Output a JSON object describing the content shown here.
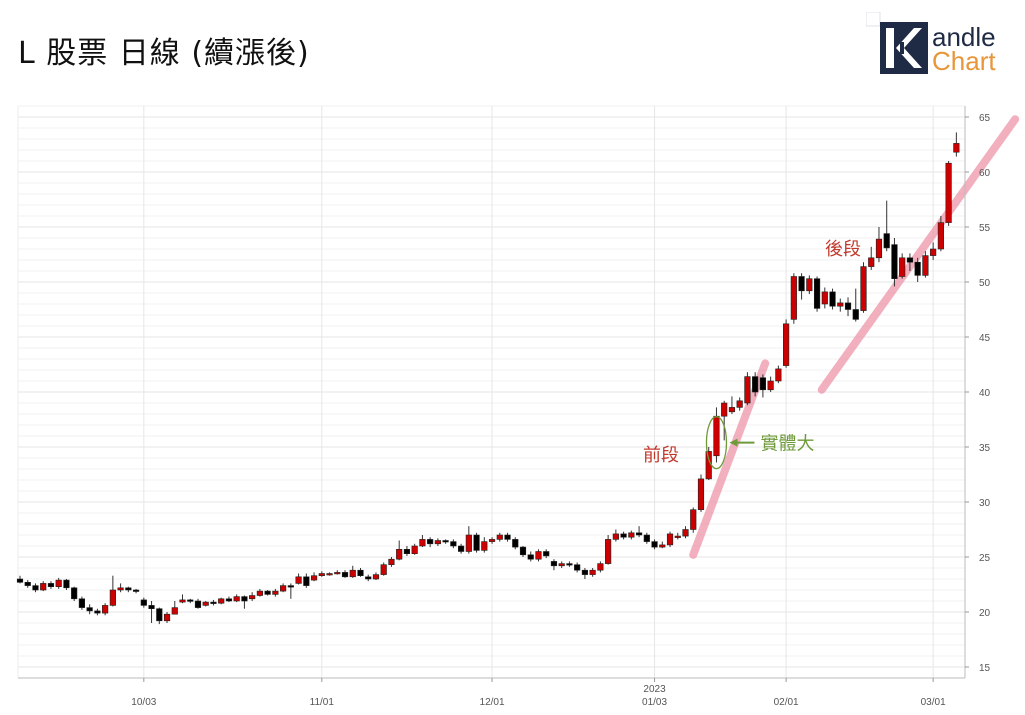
{
  "title": "L 股票 日線 (續漲後)",
  "logo": {
    "icon": "k-logo-icon",
    "line1": "andle",
    "line2": "Chart",
    "color_dark": "#1f2a44",
    "color_accent": "#e8963a"
  },
  "chart_data": {
    "type": "candlestick",
    "title": "L 股票 日線 (續漲後)",
    "xlabel": "",
    "ylabel": "",
    "ylim": [
      14,
      66
    ],
    "yticks": [
      "15",
      "20",
      "25",
      "30",
      "35",
      "40",
      "45",
      "50",
      "55",
      "60",
      "65"
    ],
    "xticks": [
      {
        "index": 16,
        "label": "10/03",
        "year": ""
      },
      {
        "index": 39,
        "label": "11/01",
        "year": ""
      },
      {
        "index": 61,
        "label": "12/01",
        "year": ""
      },
      {
        "index": 82,
        "label": "01/03",
        "year": "2023"
      },
      {
        "index": 99,
        "label": "02/01",
        "year": ""
      },
      {
        "index": 118,
        "label": "03/01",
        "year": ""
      }
    ],
    "up_color": "#cc0000",
    "down_color": "#000000",
    "candles": [
      [
        23.0,
        22.7,
        23.3,
        22.6
      ],
      [
        22.7,
        22.4,
        22.9,
        22.2
      ],
      [
        22.4,
        22.0,
        22.6,
        21.8
      ],
      [
        22.0,
        22.6,
        22.8,
        21.9
      ],
      [
        22.6,
        22.3,
        22.8,
        22.1
      ],
      [
        22.3,
        22.9,
        23.1,
        22.1
      ],
      [
        22.9,
        22.2,
        23.0,
        22.0
      ],
      [
        22.2,
        21.2,
        22.3,
        21.0
      ],
      [
        21.2,
        20.4,
        21.4,
        20.2
      ],
      [
        20.4,
        20.1,
        20.7,
        19.8
      ],
      [
        20.1,
        19.9,
        20.3,
        19.7
      ],
      [
        19.9,
        20.6,
        20.8,
        19.7
      ],
      [
        20.6,
        22.0,
        23.3,
        20.5
      ],
      [
        22.0,
        22.2,
        22.6,
        21.8
      ],
      [
        22.2,
        22.0,
        22.3,
        21.8
      ],
      [
        22.0,
        21.9,
        22.1,
        21.7
      ],
      [
        21.1,
        20.6,
        21.3,
        20.4
      ],
      [
        20.6,
        20.3,
        21.0,
        19.0
      ],
      [
        20.3,
        19.2,
        20.4,
        18.9
      ],
      [
        19.2,
        19.8,
        20.0,
        19.0
      ],
      [
        19.8,
        20.4,
        21.0,
        19.8
      ],
      [
        20.9,
        21.1,
        21.6,
        20.8
      ],
      [
        21.1,
        21.0,
        21.2,
        20.8
      ],
      [
        21.0,
        20.4,
        21.2,
        20.3
      ],
      [
        20.6,
        20.9,
        21.0,
        20.5
      ],
      [
        20.9,
        20.8,
        21.1,
        20.6
      ],
      [
        20.8,
        21.2,
        21.3,
        20.7
      ],
      [
        21.2,
        21.0,
        21.4,
        20.9
      ],
      [
        21.0,
        21.4,
        21.6,
        20.9
      ],
      [
        21.4,
        21.0,
        21.5,
        20.3
      ],
      [
        21.2,
        21.5,
        21.8,
        21.0
      ],
      [
        21.5,
        21.9,
        22.1,
        21.4
      ],
      [
        21.9,
        21.6,
        22.0,
        21.5
      ],
      [
        21.6,
        21.9,
        22.1,
        21.4
      ],
      [
        21.9,
        22.4,
        22.6,
        21.8
      ],
      [
        22.4,
        22.3,
        22.6,
        21.2
      ],
      [
        22.6,
        23.2,
        23.5,
        22.5
      ],
      [
        23.2,
        22.4,
        23.5,
        22.2
      ],
      [
        22.9,
        23.3,
        23.6,
        22.8
      ],
      [
        23.3,
        23.5,
        23.7,
        23.2
      ],
      [
        23.5,
        23.5,
        23.6,
        23.3
      ],
      [
        23.5,
        23.6,
        23.8,
        23.4
      ],
      [
        23.6,
        23.2,
        23.8,
        23.1
      ],
      [
        23.2,
        23.8,
        24.2,
        23.1
      ],
      [
        23.8,
        23.3,
        24.0,
        23.2
      ],
      [
        23.2,
        23.0,
        23.4,
        22.8
      ],
      [
        23.0,
        23.4,
        23.6,
        22.9
      ],
      [
        23.4,
        24.3,
        24.5,
        23.3
      ],
      [
        24.3,
        24.8,
        25.0,
        24.1
      ],
      [
        24.8,
        25.7,
        26.5,
        24.7
      ],
      [
        25.7,
        25.3,
        26.0,
        25.1
      ],
      [
        25.3,
        26.0,
        26.2,
        25.2
      ],
      [
        26.0,
        26.6,
        27.0,
        25.9
      ],
      [
        26.6,
        26.2,
        26.8,
        25.9
      ],
      [
        26.2,
        26.5,
        26.7,
        26.0
      ],
      [
        26.5,
        26.4,
        26.6,
        26.2
      ],
      [
        26.4,
        26.0,
        26.6,
        25.8
      ],
      [
        26.0,
        25.5,
        26.2,
        25.3
      ],
      [
        25.5,
        27.0,
        27.8,
        25.3
      ],
      [
        27.0,
        25.6,
        27.2,
        25.4
      ],
      [
        25.6,
        26.4,
        26.8,
        25.4
      ],
      [
        26.4,
        26.6,
        26.8,
        26.2
      ],
      [
        26.6,
        27.0,
        27.2,
        26.4
      ],
      [
        27.0,
        26.6,
        27.2,
        26.4
      ],
      [
        26.6,
        25.9,
        26.8,
        25.7
      ],
      [
        25.9,
        25.2,
        26.0,
        25.0
      ],
      [
        25.2,
        24.8,
        25.5,
        24.6
      ],
      [
        24.8,
        25.5,
        25.7,
        24.6
      ],
      [
        25.5,
        25.1,
        25.7,
        24.9
      ],
      [
        24.6,
        24.2,
        24.8,
        23.8
      ],
      [
        24.2,
        24.4,
        24.6,
        24.0
      ],
      [
        24.4,
        24.3,
        24.6,
        24.1
      ],
      [
        24.3,
        23.8,
        24.5,
        23.6
      ],
      [
        23.8,
        23.4,
        24.0,
        23.0
      ],
      [
        23.4,
        23.8,
        24.0,
        23.2
      ],
      [
        23.8,
        24.4,
        24.6,
        23.6
      ],
      [
        24.4,
        26.6,
        27.0,
        24.3
      ],
      [
        26.6,
        27.1,
        27.5,
        26.4
      ],
      [
        27.1,
        26.8,
        27.3,
        26.6
      ],
      [
        26.8,
        27.2,
        27.4,
        26.6
      ],
      [
        27.2,
        27.0,
        27.8,
        26.8
      ],
      [
        27.0,
        26.4,
        27.2,
        26.2
      ],
      [
        26.4,
        25.9,
        26.6,
        25.7
      ],
      [
        25.9,
        26.1,
        26.4,
        25.8
      ],
      [
        26.1,
        27.1,
        27.3,
        25.9
      ],
      [
        26.8,
        26.9,
        27.2,
        26.6
      ],
      [
        26.9,
        27.5,
        27.8,
        26.7
      ],
      [
        27.5,
        29.3,
        29.5,
        27.2
      ],
      [
        29.3,
        32.1,
        32.5,
        29.1
      ],
      [
        32.1,
        34.6,
        35.0,
        32.0
      ],
      [
        34.2,
        37.8,
        38.6,
        33.6
      ],
      [
        37.8,
        39.0,
        39.2,
        35.6
      ],
      [
        38.2,
        38.6,
        39.6,
        38.0
      ],
      [
        38.6,
        39.2,
        39.5,
        38.3
      ],
      [
        39.0,
        41.4,
        41.8,
        38.8
      ],
      [
        41.4,
        40.0,
        41.8,
        39.6
      ],
      [
        41.3,
        40.2,
        41.6,
        39.5
      ],
      [
        40.2,
        41.0,
        41.4,
        40.0
      ],
      [
        41.0,
        42.1,
        42.4,
        40.8
      ],
      [
        42.4,
        46.2,
        46.6,
        42.2
      ],
      [
        46.6,
        50.5,
        50.8,
        46.2
      ],
      [
        50.5,
        49.2,
        50.8,
        48.4
      ],
      [
        49.2,
        50.3,
        50.6,
        48.9
      ],
      [
        50.3,
        47.6,
        50.5,
        47.3
      ],
      [
        48.0,
        49.1,
        49.5,
        47.6
      ],
      [
        49.1,
        47.8,
        49.4,
        47.5
      ],
      [
        47.8,
        48.1,
        48.5,
        47.3
      ],
      [
        48.1,
        47.5,
        48.6,
        46.9
      ],
      [
        47.5,
        46.6,
        49.4,
        46.4
      ],
      [
        47.4,
        51.4,
        51.8,
        47.2
      ],
      [
        51.4,
        52.2,
        53.2,
        51.1
      ],
      [
        52.2,
        53.9,
        55.0,
        51.8
      ],
      [
        54.4,
        53.1,
        57.4,
        52.8
      ],
      [
        53.4,
        50.3,
        54.0,
        49.6
      ],
      [
        50.5,
        52.2,
        52.6,
        50.3
      ],
      [
        52.2,
        51.8,
        52.6,
        51.0
      ],
      [
        51.8,
        50.6,
        52.2,
        50.0
      ],
      [
        50.6,
        52.4,
        52.8,
        50.4
      ],
      [
        52.4,
        53.0,
        53.6,
        52.0
      ],
      [
        53.0,
        55.4,
        56.0,
        52.8
      ],
      [
        55.4,
        60.8,
        61.0,
        55.1
      ],
      [
        61.8,
        62.6,
        63.6,
        61.4
      ]
    ],
    "annotations": {
      "front_segment": "前段",
      "back_segment": "後段",
      "large_body": "實體大"
    }
  }
}
